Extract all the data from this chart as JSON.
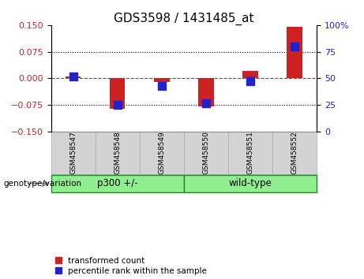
{
  "title": "GDS3598 / 1431485_at",
  "samples": [
    "GSM458547",
    "GSM458548",
    "GSM458549",
    "GSM458550",
    "GSM458551",
    "GSM458552"
  ],
  "transformed_count": [
    0.005,
    -0.085,
    -0.01,
    -0.08,
    0.02,
    0.145
  ],
  "percentile_rank": [
    52,
    25,
    43,
    27,
    47,
    80
  ],
  "ylim_left": [
    -0.15,
    0.15
  ],
  "ylim_right": [
    0,
    100
  ],
  "yticks_left": [
    -0.15,
    -0.075,
    0,
    0.075,
    0.15
  ],
  "yticks_right": [
    0,
    25,
    50,
    75,
    100
  ],
  "ytick_labels_right": [
    "0",
    "25",
    "50",
    "75",
    "100%"
  ],
  "dotted_lines": [
    -0.075,
    0.075
  ],
  "bar_color": "#cc2222",
  "dot_color": "#2222cc",
  "zero_line_color": "#cc2222",
  "group1_label": "p300 +/-",
  "group2_label": "wild-type",
  "group1_color": "#90ee90",
  "group2_color": "#90ee90",
  "group_label_prefix": "genotype/variation",
  "group1_indices": [
    0,
    1,
    2
  ],
  "group2_indices": [
    3,
    4,
    5
  ],
  "legend_red_label": "transformed count",
  "legend_blue_label": "percentile rank within the sample",
  "bar_width": 0.35,
  "background_color": "#ffffff",
  "tick_label_color_left": "#cc2222",
  "tick_label_color_right": "#2222cc",
  "title_fontsize": 11,
  "tick_fontsize": 8,
  "dot_size": 45,
  "sample_box_color": "#d3d3d3",
  "sample_box_edge": "#aaaaaa"
}
